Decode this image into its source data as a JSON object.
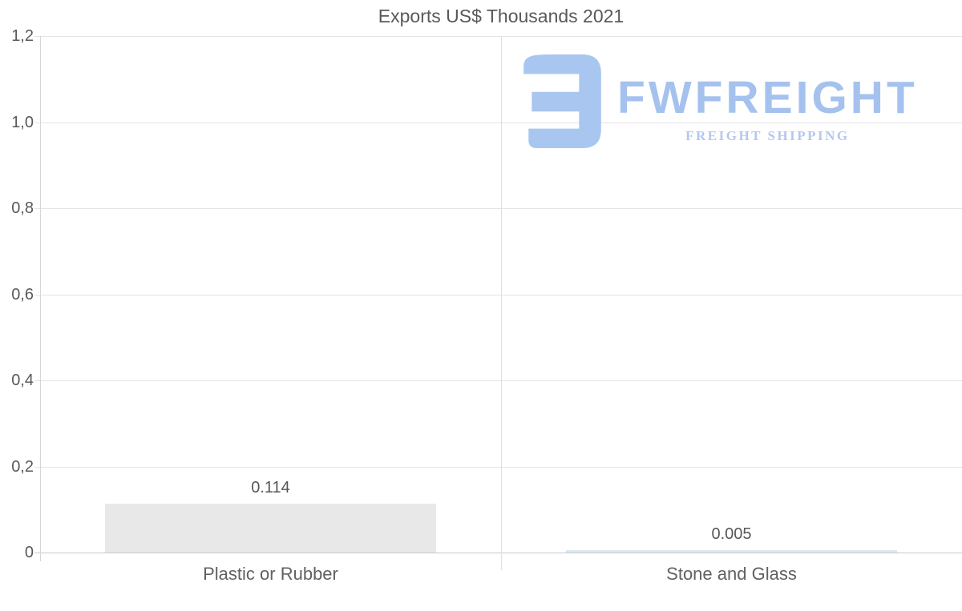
{
  "chart_data": {
    "type": "bar",
    "title": "Exports US$ Thousands 2021",
    "categories": [
      "Plastic or Rubber",
      "Stone and Glass"
    ],
    "values": [
      0.114,
      0.005
    ],
    "value_labels": [
      "0.114",
      "0.005"
    ],
    "bar_colors": [
      "#e8e8e8",
      "#dce8ef"
    ],
    "ylim": [
      0,
      1.2
    ],
    "y_ticks": [
      {
        "value": 0,
        "label": "0"
      },
      {
        "value": 0.2,
        "label": "0,2"
      },
      {
        "value": 0.4,
        "label": "0,4"
      },
      {
        "value": 0.6,
        "label": "0,6"
      },
      {
        "value": 0.8,
        "label": "0,8"
      },
      {
        "value": 1.0,
        "label": "1,0"
      },
      {
        "value": 1.2,
        "label": "1,2"
      }
    ],
    "grid": true,
    "legend": "none",
    "xlabel": "",
    "ylabel": ""
  },
  "watermark": {
    "brand": "FWFREIGHT",
    "tagline": "FREIGHT SHIPPING",
    "icon": "fwfreight-logo-icon",
    "colors": {
      "icon": "#a9c6f0",
      "brand": "#a5c2ef",
      "tagline": "#b5c7ee"
    }
  },
  "style": {
    "background": "#ffffff",
    "title_color": "#595959",
    "axis_label_color": "#595959",
    "data_label_color": "#565656",
    "gridline_color": "#e4e4e4",
    "axis_line_color": "#c9c9c9"
  }
}
